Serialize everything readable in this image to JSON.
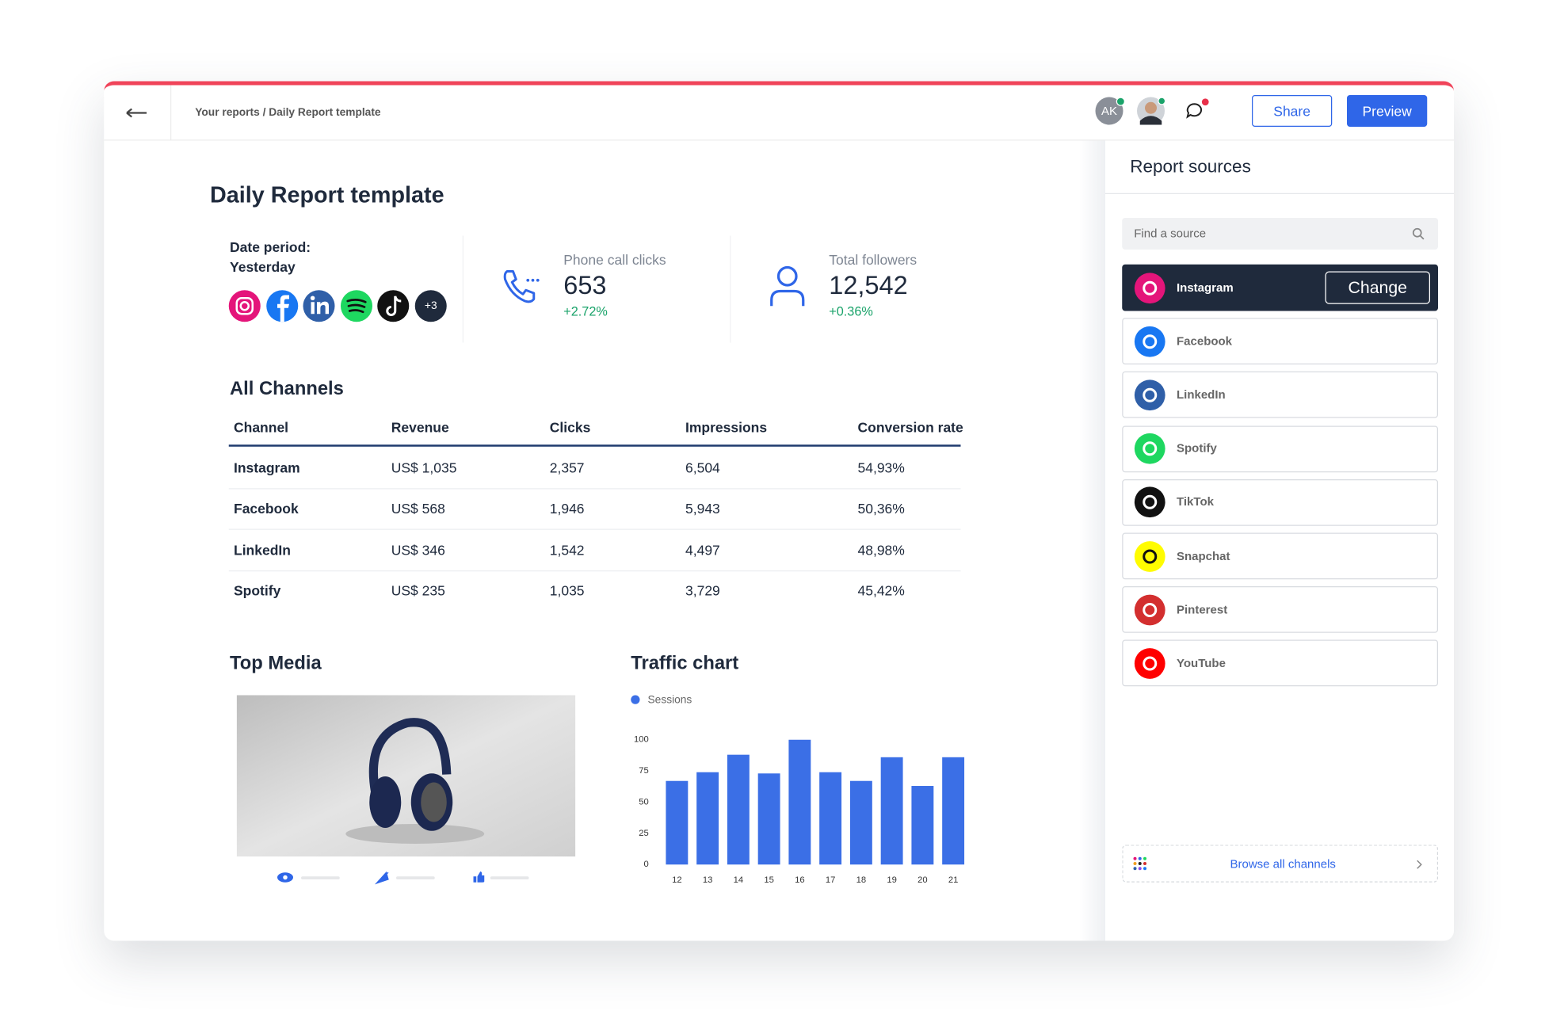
{
  "header": {
    "breadcrumb": "Your reports / Daily Report template",
    "avatar_initials": "AK",
    "share": "Share",
    "preview": "Preview"
  },
  "report": {
    "title": "Daily Report template",
    "date_period_label": "Date period:",
    "date_period": "Yesterday",
    "more_channels": "+3",
    "kpis": [
      {
        "label": "Phone call clicks",
        "value": "653",
        "change": "+2.72%"
      },
      {
        "label": "Total followers",
        "value": "12,542",
        "change": "+0.36%"
      }
    ]
  },
  "table": {
    "title": "All Channels",
    "columns": [
      "Channel",
      "Revenue",
      "Clicks",
      "Impressions",
      "Conversion rate"
    ],
    "rows": [
      [
        "Instagram",
        "US$ 1,035",
        "2,357",
        "6,504",
        "54,93%"
      ],
      [
        "Facebook",
        "US$ 568",
        "1,946",
        "5,943",
        "50,36%"
      ],
      [
        "LinkedIn",
        "US$ 346",
        "1,542",
        "4,497",
        "48,98%"
      ],
      [
        "Spotify",
        "US$ 235",
        "1,035",
        "3,729",
        "45,42%"
      ]
    ]
  },
  "top_media": {
    "title": "Top Media"
  },
  "chart_data": {
    "type": "bar",
    "title": "Traffic chart",
    "categories": [
      "12",
      "13",
      "14",
      "15",
      "16",
      "17",
      "18",
      "19",
      "20",
      "21"
    ],
    "series": [
      {
        "name": "Sessions",
        "color": "#3b6fe6",
        "values": [
          67,
          74,
          88,
          73,
          100,
          74,
          67,
          86,
          63,
          86
        ]
      }
    ],
    "ylim": [
      0,
      100
    ],
    "yticks": [
      0,
      25,
      50,
      75,
      100
    ]
  },
  "sidebar": {
    "title": "Report sources",
    "search_placeholder": "Find a source",
    "change": "Change",
    "browse": "Browse all channels",
    "sources": [
      {
        "name": "Instagram",
        "color": "#e4157a"
      },
      {
        "name": "Facebook",
        "color": "#1877f2"
      },
      {
        "name": "LinkedIn",
        "color": "#2f5fa8"
      },
      {
        "name": "Spotify",
        "color": "#1ed760"
      },
      {
        "name": "TikTok",
        "color": "#111111"
      },
      {
        "name": "Snapchat",
        "color": "#fffc00"
      },
      {
        "name": "Pinterest",
        "color": "#d32f2f"
      },
      {
        "name": "YouTube",
        "color": "#ff0000"
      }
    ]
  }
}
